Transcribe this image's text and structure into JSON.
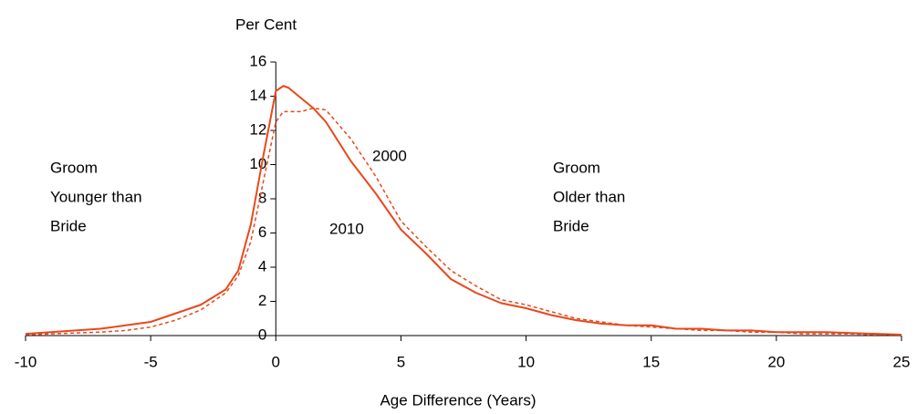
{
  "chart_data": {
    "type": "line",
    "y_label": "Per Cent",
    "x_label": "Age Difference (Years)",
    "x": [
      -10,
      -9,
      -8,
      -7,
      -6,
      -5,
      -4,
      -3,
      -2,
      -1.5,
      -1,
      -0.5,
      0,
      0.3,
      0.5,
      1,
      1.5,
      2,
      3,
      4,
      5,
      6,
      7,
      8,
      9,
      10,
      11,
      12,
      13,
      14,
      15,
      16,
      17,
      18,
      19,
      20,
      21,
      22,
      23,
      24,
      25
    ],
    "series": [
      {
        "name": "2010",
        "color": "#e8481c",
        "dash": false,
        "values": [
          0.1,
          0.2,
          0.3,
          0.4,
          0.6,
          0.8,
          1.3,
          1.8,
          2.7,
          3.8,
          6.5,
          10.5,
          14.3,
          14.6,
          14.5,
          13.9,
          13.3,
          12.5,
          10.2,
          8.3,
          6.2,
          4.8,
          3.3,
          2.5,
          1.9,
          1.6,
          1.2,
          0.9,
          0.7,
          0.6,
          0.6,
          0.4,
          0.4,
          0.3,
          0.3,
          0.2,
          0.2,
          0.2,
          0.15,
          0.1,
          0.05
        ]
      },
      {
        "name": "2000",
        "color": "#e8481c",
        "dash": true,
        "values": [
          0.05,
          0.1,
          0.15,
          0.2,
          0.3,
          0.5,
          0.9,
          1.5,
          2.5,
          3.5,
          5.5,
          9,
          12.5,
          13.1,
          13.1,
          13.1,
          13.3,
          13.2,
          11.5,
          9.3,
          6.7,
          5.2,
          3.8,
          2.9,
          2.1,
          1.8,
          1.4,
          1.0,
          0.8,
          0.6,
          0.5,
          0.4,
          0.3,
          0.3,
          0.2,
          0.2,
          0.1,
          0.1,
          0.1,
          0.05,
          0.05
        ]
      }
    ],
    "annotations": [
      {
        "lines": [
          "Groom",
          "Younger than",
          "Bride"
        ]
      },
      {
        "lines": [
          "Groom",
          "Older than",
          "Bride"
        ]
      }
    ],
    "xlim": [
      -10,
      25
    ],
    "xticks": [
      -10,
      -5,
      0,
      5,
      10,
      15,
      20,
      25
    ],
    "ylim": [
      0,
      16
    ],
    "yticks": [
      0,
      2,
      4,
      6,
      8,
      10,
      12,
      14,
      16
    ],
    "y_axis_crosses": 0,
    "grid": false
  }
}
